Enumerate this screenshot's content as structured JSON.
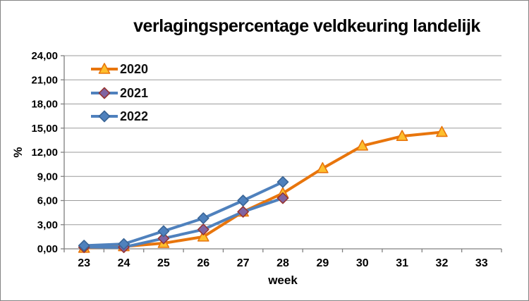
{
  "chart_data": {
    "type": "line",
    "title": "verlagingspercentage veldkeuring landelijk",
    "xlabel": "week",
    "ylabel": "%",
    "categories": [
      "23",
      "24",
      "25",
      "26",
      "27",
      "28",
      "29",
      "30",
      "31",
      "32",
      "33"
    ],
    "ylim": [
      0,
      24
    ],
    "ytick_step": 3,
    "ytick_labels": [
      "0,00",
      "3,00",
      "6,00",
      "9,00",
      "12,00",
      "15,00",
      "18,00",
      "21,00",
      "24,00"
    ],
    "grid": true,
    "legend_position": "top-left-inside",
    "series": [
      {
        "name": "2020",
        "line_color": "#E8750C",
        "marker": "triangle",
        "marker_fill": "#FDBF2D",
        "marker_border": "#E8750C",
        "values": [
          0.1,
          0.3,
          0.7,
          1.5,
          4.6,
          6.9,
          10.0,
          12.8,
          14.0,
          14.5
        ]
      },
      {
        "name": "2021",
        "line_color": "#4F81BD",
        "marker": "diamond",
        "marker_fill": "#8064A2",
        "marker_border": "#963634",
        "values": [
          0.2,
          0.2,
          1.3,
          2.4,
          4.6,
          6.3
        ]
      },
      {
        "name": "2022",
        "line_color": "#4F81BD",
        "marker": "diamond",
        "marker_fill": "#4F81BD",
        "marker_border": "#3A6596",
        "values": [
          0.4,
          0.6,
          2.2,
          3.8,
          6.0,
          8.3
        ]
      }
    ],
    "colors": {
      "gridline": "#9B9B9B",
      "axis": "#808080",
      "tick_text": "#000000",
      "frame_border": "#848484"
    }
  }
}
